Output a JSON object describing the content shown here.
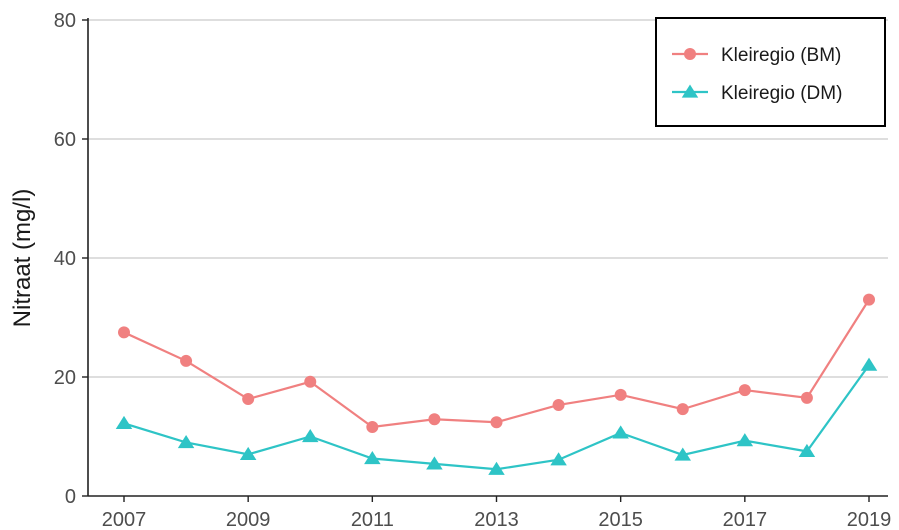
{
  "chart_data": {
    "type": "line",
    "title": "",
    "xlabel": "",
    "ylabel": "Nitraat (mg/l)",
    "x": [
      2007,
      2008,
      2009,
      2010,
      2011,
      2012,
      2013,
      2014,
      2015,
      2016,
      2017,
      2018,
      2019
    ],
    "x_tick_labels": [
      "2007",
      "2009",
      "2011",
      "2013",
      "2015",
      "2017",
      "2019"
    ],
    "y_tick_labels": [
      "0",
      "20",
      "40",
      "60",
      "80"
    ],
    "xlim": [
      2007,
      2019
    ],
    "ylim": [
      0,
      80
    ],
    "grid": "horizontal",
    "legend_position": "top-right",
    "series": [
      {
        "name": "Kleiregio (BM)",
        "color": "#F08080",
        "marker": "circle",
        "values": [
          27.5,
          22.7,
          16.3,
          19.2,
          11.6,
          12.9,
          12.4,
          15.3,
          17.0,
          14.6,
          17.8,
          16.5,
          33.0
        ]
      },
      {
        "name": "Kleiregio (DM)",
        "color": "#2EC4C6",
        "marker": "triangle",
        "values": [
          12.2,
          9.0,
          7.0,
          10.0,
          6.3,
          5.4,
          4.5,
          6.1,
          10.6,
          6.9,
          9.3,
          7.5,
          22.0
        ]
      }
    ]
  }
}
